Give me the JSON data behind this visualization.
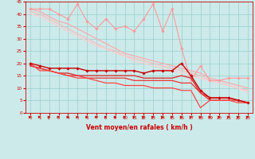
{
  "xlabel": "Vent moyen/en rafales ( km/h )",
  "xlim": [
    -0.5,
    23.5
  ],
  "ylim": [
    0,
    45
  ],
  "xticks": [
    0,
    1,
    2,
    3,
    4,
    5,
    6,
    7,
    8,
    9,
    10,
    11,
    12,
    13,
    14,
    15,
    16,
    17,
    18,
    19,
    20,
    21,
    22,
    23
  ],
  "yticks": [
    0,
    5,
    10,
    15,
    20,
    25,
    30,
    35,
    40,
    45
  ],
  "bg_color": "#cceaea",
  "grid_color": "#99cccc",
  "series": [
    {
      "x": [
        0,
        1,
        2,
        3,
        4,
        5,
        6,
        7,
        8,
        9,
        10,
        11,
        12,
        13,
        14,
        15,
        16,
        17,
        18,
        19,
        20,
        21,
        22,
        23
      ],
      "y": [
        42,
        42,
        42,
        40,
        38,
        44,
        37,
        34,
        38,
        34,
        35,
        33,
        38,
        44,
        33,
        42,
        26,
        13,
        19,
        13,
        13,
        14,
        14,
        14
      ],
      "color": "#ff9999",
      "lw": 0.8,
      "marker": "D",
      "ms": 1.8,
      "zorder": 3
    },
    {
      "x": [
        0,
        1,
        2,
        3,
        4,
        5,
        6,
        7,
        8,
        9,
        10,
        11,
        12,
        13,
        14,
        15,
        16,
        17,
        18,
        19,
        20,
        21,
        22,
        23
      ],
      "y": [
        42,
        41,
        39,
        37,
        36,
        34,
        32,
        30,
        28,
        26,
        24,
        23,
        22,
        21,
        20,
        19,
        18,
        17,
        16,
        14,
        13,
        12,
        11,
        10
      ],
      "color": "#ffaaaa",
      "lw": 0.9,
      "marker": null,
      "ms": 0,
      "zorder": 2
    },
    {
      "x": [
        0,
        1,
        2,
        3,
        4,
        5,
        6,
        7,
        8,
        9,
        10,
        11,
        12,
        13,
        14,
        15,
        16,
        17,
        18,
        19,
        20,
        21,
        22,
        23
      ],
      "y": [
        41,
        40,
        38,
        36,
        34,
        32,
        30,
        28,
        26,
        25,
        23,
        22,
        21,
        20,
        19,
        18,
        17,
        16,
        15,
        13,
        12,
        11,
        10,
        9
      ],
      "color": "#ffbbbb",
      "lw": 0.9,
      "marker": null,
      "ms": 0,
      "zorder": 2
    },
    {
      "x": [
        0,
        1,
        2,
        3,
        4,
        5,
        6,
        7,
        8,
        9,
        10,
        11,
        12,
        13,
        14,
        15,
        16,
        17,
        18,
        19,
        20,
        21,
        22,
        23
      ],
      "y": [
        40,
        39,
        37,
        35,
        33,
        31,
        29,
        27,
        26,
        24,
        23,
        21,
        20,
        19,
        18,
        17,
        16,
        15,
        14,
        13,
        12,
        11,
        10,
        8
      ],
      "color": "#ffcccc",
      "lw": 0.9,
      "marker": null,
      "ms": 0,
      "zorder": 2
    },
    {
      "x": [
        0,
        1,
        2,
        3,
        4,
        5,
        6,
        7,
        8,
        9,
        10,
        11,
        12,
        13,
        14,
        15,
        16,
        17,
        18,
        19,
        20,
        21,
        22,
        23
      ],
      "y": [
        20,
        19,
        18,
        18,
        18,
        18,
        17,
        17,
        17,
        17,
        17,
        17,
        16,
        17,
        17,
        17,
        20,
        15,
        9,
        6,
        6,
        6,
        5,
        4
      ],
      "color": "#cc0000",
      "lw": 1.0,
      "marker": "D",
      "ms": 1.8,
      "zorder": 4
    },
    {
      "x": [
        0,
        1,
        2,
        3,
        4,
        5,
        6,
        7,
        8,
        9,
        10,
        11,
        12,
        13,
        14,
        15,
        16,
        17,
        18,
        19,
        20,
        21,
        22,
        23
      ],
      "y": [
        19,
        18,
        17,
        16,
        16,
        15,
        15,
        15,
        15,
        15,
        15,
        15,
        14,
        14,
        14,
        14,
        15,
        14,
        8,
        6,
        6,
        6,
        5,
        4
      ],
      "color": "#dd2222",
      "lw": 0.9,
      "marker": null,
      "ms": 0,
      "zorder": 3
    },
    {
      "x": [
        0,
        1,
        2,
        3,
        4,
        5,
        6,
        7,
        8,
        9,
        10,
        11,
        12,
        13,
        14,
        15,
        16,
        17,
        18,
        19,
        20,
        21,
        22,
        23
      ],
      "y": [
        19,
        18,
        17,
        16,
        15,
        15,
        14,
        14,
        14,
        14,
        14,
        13,
        13,
        13,
        13,
        13,
        12,
        12,
        8,
        5,
        5,
        5,
        5,
        4
      ],
      "color": "#ee3333",
      "lw": 0.9,
      "marker": null,
      "ms": 0,
      "zorder": 3
    },
    {
      "x": [
        0,
        1,
        2,
        3,
        4,
        5,
        6,
        7,
        8,
        9,
        10,
        11,
        12,
        13,
        14,
        15,
        16,
        17,
        18,
        19,
        20,
        21,
        22,
        23
      ],
      "y": [
        20,
        17,
        17,
        16,
        15,
        14,
        14,
        13,
        12,
        12,
        11,
        11,
        11,
        10,
        10,
        10,
        9,
        9,
        2,
        5,
        5,
        5,
        4,
        4
      ],
      "color": "#ff4444",
      "lw": 0.9,
      "marker": null,
      "ms": 0,
      "zorder": 3
    }
  ],
  "arrow_color": "#cc0000"
}
